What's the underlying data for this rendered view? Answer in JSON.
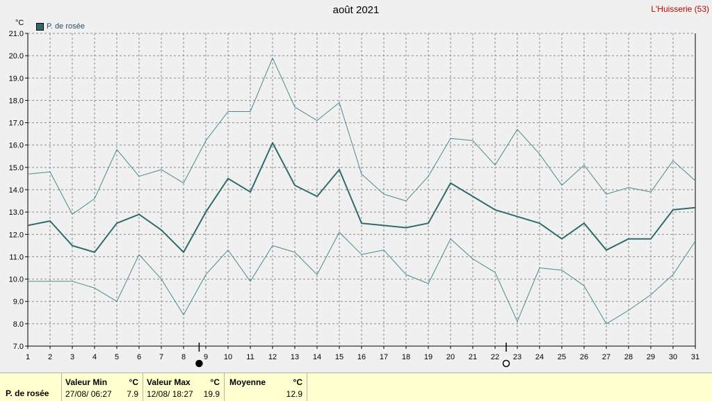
{
  "title": "août 2021",
  "location": "L'Huisserie (53)",
  "colors": {
    "series": "#2f6b6b",
    "envelope": "#4a8a8a",
    "grid": "#8a8a8a",
    "location": "#c00000"
  },
  "chart_data": {
    "type": "line",
    "title": "août 2021",
    "ylabel": "°C",
    "ylim": [
      7.0,
      21.0
    ],
    "yticks": [
      "7.0",
      "8.0",
      "9.0",
      "10.0",
      "11.0",
      "12.0",
      "13.0",
      "14.0",
      "15.0",
      "16.0",
      "17.0",
      "18.0",
      "19.0",
      "20.0",
      "21.0"
    ],
    "x": [
      1,
      2,
      3,
      4,
      5,
      6,
      7,
      8,
      9,
      10,
      11,
      12,
      13,
      14,
      15,
      16,
      17,
      18,
      19,
      20,
      21,
      22,
      23,
      24,
      25,
      26,
      27,
      28,
      29,
      30,
      31
    ],
    "legend_position": "top-left",
    "grid": true,
    "series": [
      {
        "name": "P. de rosée",
        "role": "mean",
        "values": [
          12.4,
          12.6,
          11.5,
          11.2,
          12.5,
          12.9,
          12.2,
          11.2,
          13.0,
          14.5,
          13.9,
          16.1,
          14.2,
          13.7,
          14.9,
          12.5,
          12.4,
          12.3,
          12.5,
          14.3,
          13.7,
          13.1,
          12.8,
          12.5,
          11.8,
          12.5,
          11.3,
          11.8,
          11.8,
          13.1,
          13.2
        ]
      },
      {
        "role": "max",
        "values": [
          14.7,
          14.8,
          12.9,
          13.6,
          15.8,
          14.6,
          14.9,
          14.3,
          16.2,
          17.5,
          17.5,
          19.9,
          17.7,
          17.1,
          17.9,
          14.7,
          13.8,
          13.5,
          14.6,
          16.3,
          16.2,
          15.1,
          16.7,
          15.6,
          14.2,
          15.1,
          13.8,
          14.1,
          13.9,
          15.3,
          14.4
        ]
      },
      {
        "role": "min",
        "values": [
          9.9,
          9.9,
          9.9,
          9.6,
          9.0,
          11.1,
          10.0,
          8.4,
          10.2,
          11.3,
          9.9,
          11.5,
          11.2,
          10.2,
          12.1,
          11.1,
          11.3,
          10.2,
          9.8,
          11.8,
          10.9,
          10.3,
          8.1,
          10.5,
          10.4,
          9.7,
          8.0,
          8.6,
          9.3,
          10.2,
          11.7
        ]
      }
    ],
    "moon_markers": [
      {
        "day": 8.7,
        "phase": "new"
      },
      {
        "day": 22.5,
        "phase": "full"
      }
    ]
  },
  "legend": {
    "label": "P. de rosée"
  },
  "footer": {
    "series_name": "P. de rosée",
    "min": {
      "header": "Valeur Min",
      "unit": "°C",
      "when": "27/08/  06:27",
      "value": "7.9"
    },
    "max": {
      "header": "Valeur Max",
      "unit": "°C",
      "when": "12/08/  18:27",
      "value": "19.9"
    },
    "avg": {
      "header": "Moyenne",
      "unit": "°C",
      "value": "12.9"
    }
  }
}
